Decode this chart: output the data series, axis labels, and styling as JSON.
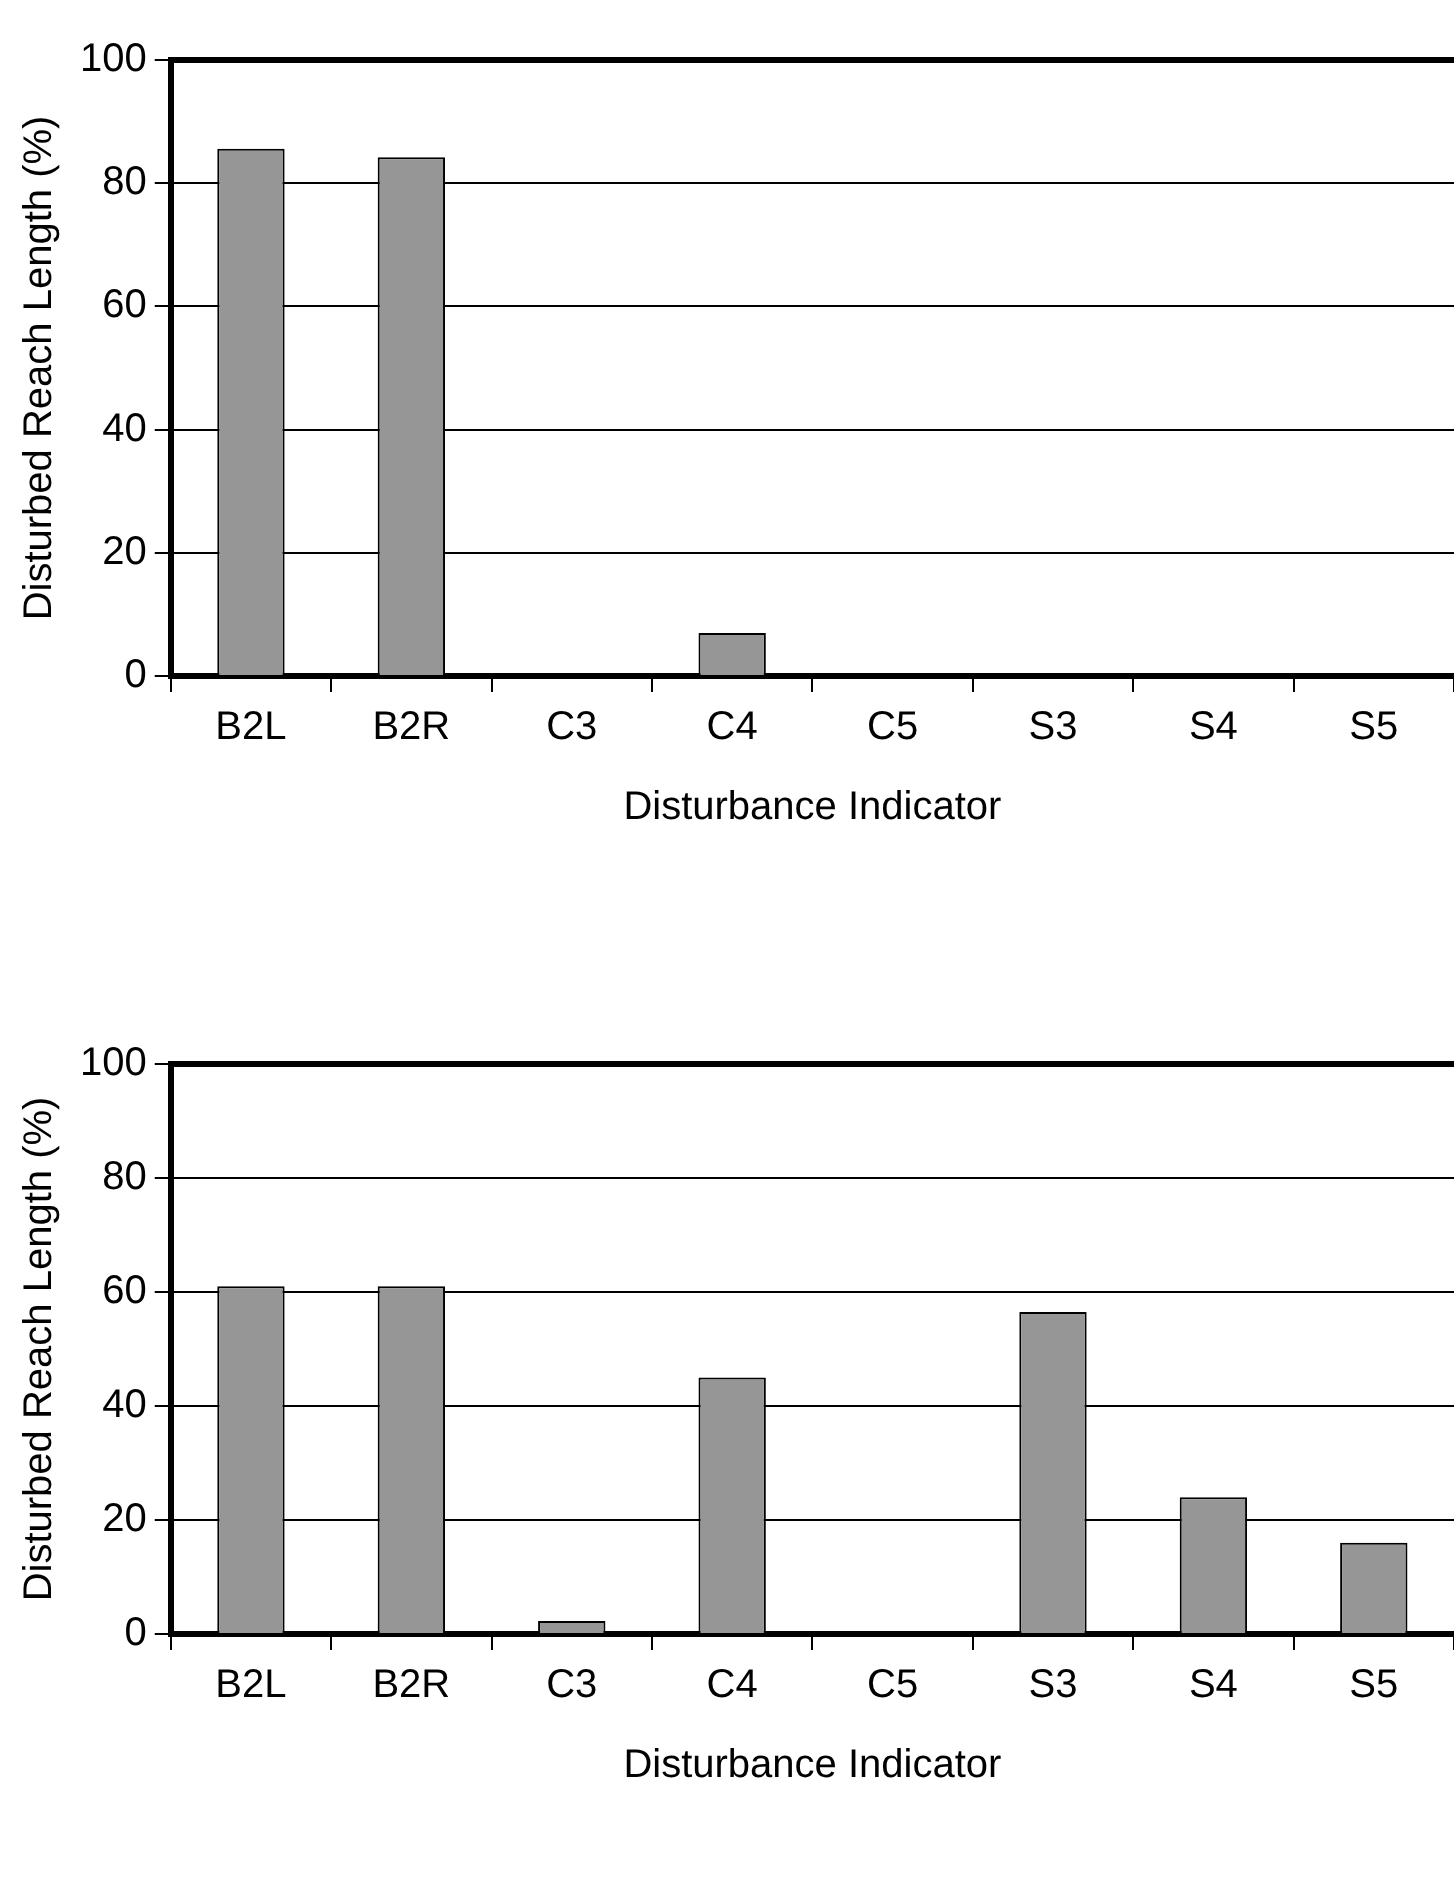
{
  "chart_data": [
    {
      "type": "bar",
      "xlabel": "Disturbance Indicator",
      "ylabel": "Disturbed Reach Length (%)",
      "categories": [
        "B2L",
        "B2R",
        "C3",
        "C4",
        "C5",
        "S3",
        "S4",
        "S5"
      ],
      "values": [
        85.6,
        84.2,
        0,
        7,
        0,
        0,
        0,
        0
      ],
      "color": "#969696",
      "ylim": [
        0,
        100
      ],
      "yticks": [
        0,
        20,
        40,
        60,
        80,
        100
      ],
      "grid": "y"
    },
    {
      "type": "bar",
      "xlabel": "Disturbance Indicator",
      "ylabel": "Disturbed Reach Length (%)",
      "categories": [
        "B2L",
        "B2R",
        "C3",
        "C4",
        "C5",
        "S3",
        "S4",
        "S5"
      ],
      "values": [
        61,
        61,
        2.3,
        45,
        0,
        56.5,
        24,
        16
      ],
      "color": "#969696",
      "ylim": [
        0,
        100
      ],
      "yticks": [
        0,
        20,
        40,
        60,
        80,
        100
      ],
      "grid": "y"
    }
  ]
}
